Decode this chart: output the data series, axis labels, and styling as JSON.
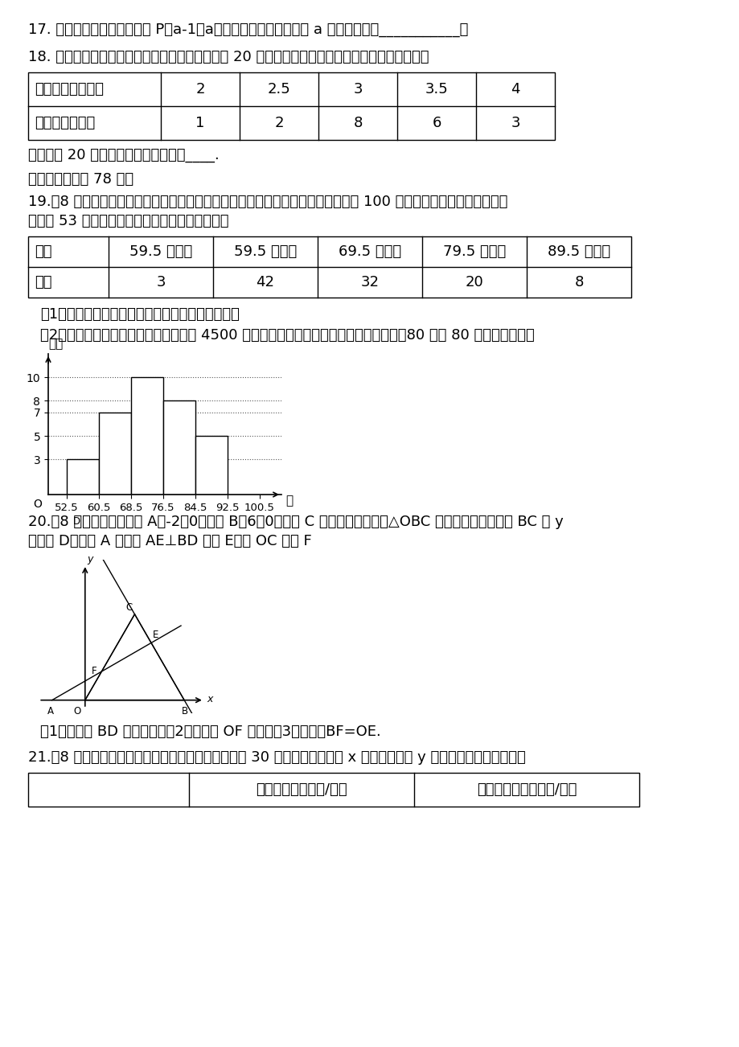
{
  "page_bg": "#ffffff",
  "q17_text": "17. 在平面直角坐标系中，点 P（a-1，a）是第二象限内的点，则 a 的取值范围是___________。",
  "q18_text": "18. 为了解学生暑期在家的阅读情况，随机调查了 20 名学生某一天的阅读小时数，具体统计如下：",
  "q18_row1": [
    "阅读时间（小时）",
    "2",
    "2.5",
    "3",
    "3.5",
    "4"
  ],
  "q18_row2": [
    "学生人数（名）",
    "1",
    "2",
    "8",
    "6",
    "3"
  ],
  "q18_followup": "则关于这 20 名学生阅读小时的众数是____.",
  "section3_text": "三、解答题（共 78 分）",
  "q19_text1": "19.（8 分）某市对八年级部分学生的数学成绩进行了质量监测（分数为整数，满分 100 分），根据质量监测成绩（最",
  "q19_text2": "低分为 53 分）分别绘制了如下的统计表和统计图",
  "q19_row1": [
    "分数",
    "59.5 分以下",
    "59.5 分以上",
    "69.5 分以上",
    "79.5 分以上",
    "89.5 分以上"
  ],
  "q19_row2": [
    "人数",
    "3",
    "42",
    "32",
    "20",
    "8"
  ],
  "q19_sub1": "（1）求出被调查的学生人数，并补全频数直方图；",
  "q19_sub2": "（2）若全市参加质量监测的学生大约有 4500 人，请估计成绩优秀的学生约有多少人？（80 分及 80 分以上为优秀）",
  "hist_bars": [
    3,
    7,
    10,
    8,
    5
  ],
  "hist_bar_edges": [
    52.5,
    60.5,
    68.5,
    76.5,
    84.5,
    92.5,
    100.5
  ],
  "hist_yticks": [
    3,
    5,
    7,
    8,
    10
  ],
  "hist_ylabel": "人数",
  "hist_xlabel": "分",
  "q20_text1": "20.（8 分）如图，已知点 A（-2，0），点 B（6，0），点 C 在第一象限内，且△OBC 为等边三角形，直线 BC 交 y",
  "q20_text2": "轴于点 D，过点 A 作直线 AE⊥BD 于点 E，交 OC 于点 F",
  "q20_sub": "（1）求直线 BD 的解析式；（2）求线段 OF 的长；（3）求证：BF=OE.",
  "q21_text": "21.（8 分）蔬菜基地种植了娃娃菜和油菜两种蔬菜共 30 亩，设种植娃娃菜 x 亩，总收益为 y 万元，有关数据见下表：",
  "q21_row1": [
    "",
    "成本（单位：万元/亩）",
    "销售额（单位：万元/亩）"
  ]
}
